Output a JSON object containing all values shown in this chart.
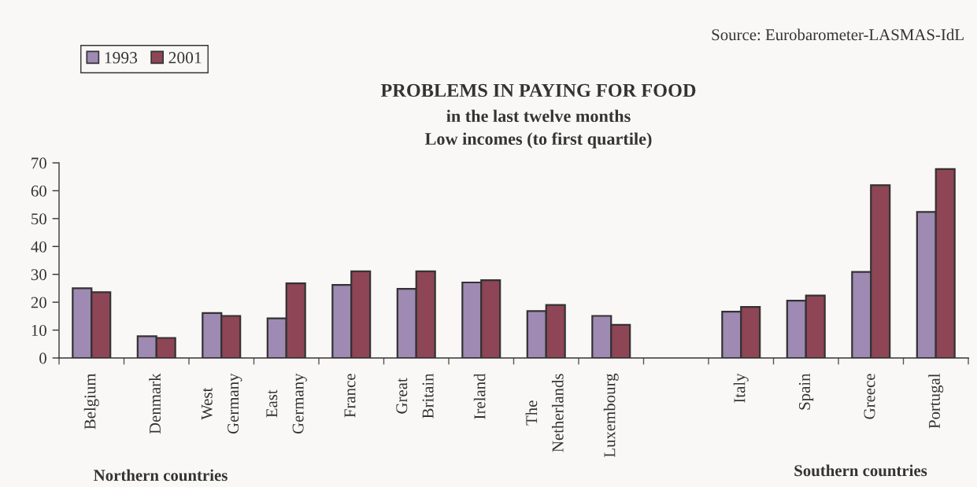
{
  "chart_data": {
    "type": "bar",
    "title": "PROBLEMS IN PAYING FOR FOOD",
    "subtitle": "in the last twelve months\nLow incomes (to first quartile)",
    "categories": [
      "Belgium",
      "Denmark",
      "West\nGermany",
      "East\nGermany",
      "France",
      "Great\nBritain",
      "Ireland",
      "The\nNetherlands",
      "Luxembourg",
      null,
      "Italy",
      "Spain",
      "Greece",
      "Portugal"
    ],
    "series": [
      {
        "name": "1993",
        "color": "#9e8ab3",
        "values": [
          25.0,
          7.8,
          16.1,
          14.2,
          26.2,
          24.8,
          27.1,
          16.8,
          15.1,
          null,
          16.6,
          20.6,
          30.9,
          52.4
        ]
      },
      {
        "name": "2001",
        "color": "#8e4555",
        "values": [
          23.6,
          7.2,
          15.1,
          26.8,
          31.1,
          31.1,
          27.9,
          19.0,
          11.9,
          null,
          18.3,
          22.4,
          62.0,
          67.8
        ]
      }
    ],
    "ylim": [
      0,
      70
    ],
    "yticks": [
      0,
      10,
      20,
      30,
      40,
      50,
      60,
      70
    ],
    "grid": false,
    "legend": "top left",
    "annotations": [
      "Source: Eurobarometer-LASMAS-IdL",
      "Northern countries",
      "Southern countries"
    ]
  }
}
